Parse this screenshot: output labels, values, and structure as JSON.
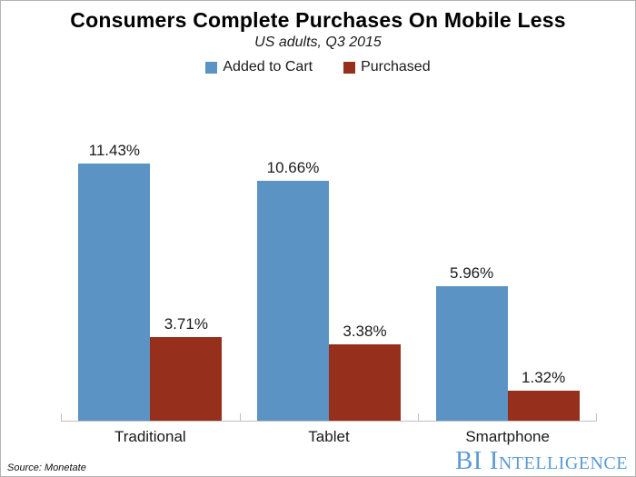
{
  "header": {
    "title": "Consumers Complete Purchases On Mobile Less",
    "subtitle": "US adults, Q3 2015"
  },
  "legend": {
    "items": [
      {
        "label": "Added to Cart",
        "color": "#5B93C4"
      },
      {
        "label": "Purchased",
        "color": "#96301D"
      }
    ]
  },
  "chart_data": {
    "type": "bar",
    "title": "Consumers Complete Purchases On Mobile Less",
    "subtitle": "US adults, Q3 2015",
    "categories": [
      "Traditional",
      "Tablet",
      "Smartphone"
    ],
    "series": [
      {
        "name": "Added to Cart",
        "color": "#5B93C4",
        "values": [
          11.43,
          10.66,
          5.96
        ],
        "labels": [
          "11.43%",
          "10.66%",
          "5.96%"
        ]
      },
      {
        "name": "Purchased",
        "color": "#96301D",
        "values": [
          3.71,
          3.38,
          1.32
        ],
        "labels": [
          "3.71%",
          "3.38%",
          "1.32%"
        ]
      }
    ],
    "unit": "%",
    "xlabel": "",
    "ylabel": "",
    "ylim": [
      0,
      13
    ],
    "grid": false,
    "legend_position": "top",
    "axis_color": "#bfbfbf"
  },
  "footer": {
    "source": "Source: Monetate",
    "brand": "BI Intelligence",
    "brand_color": "#5B9BD5"
  }
}
